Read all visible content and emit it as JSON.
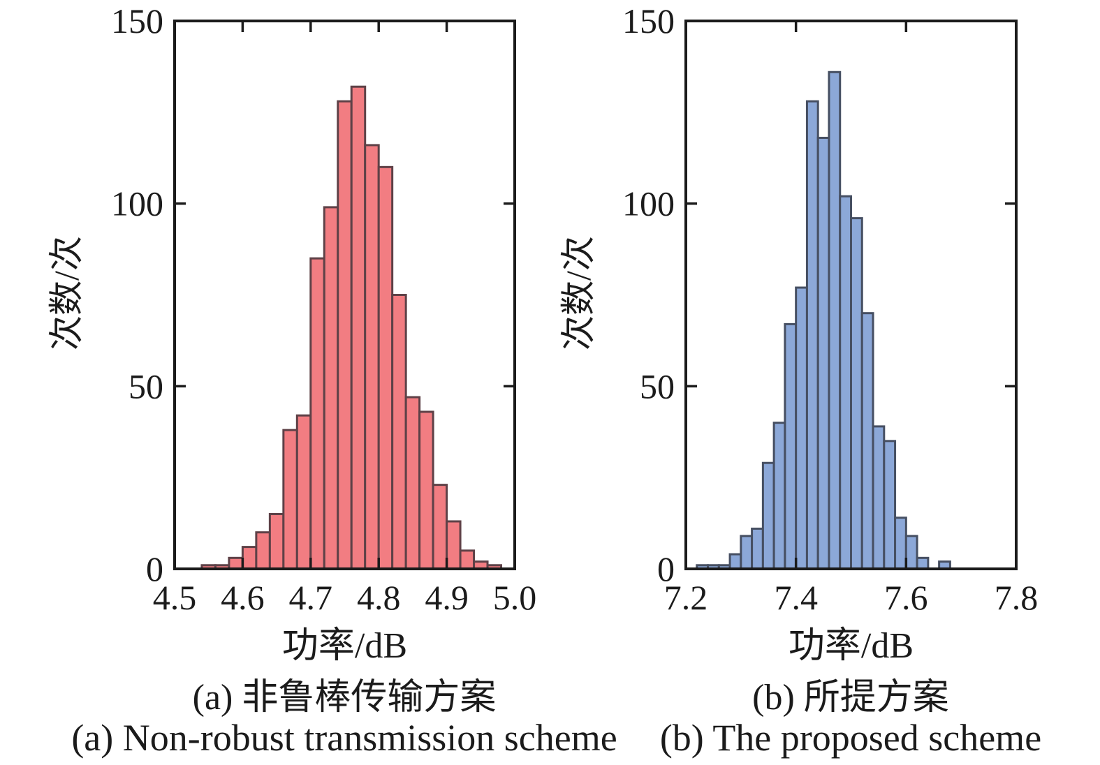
{
  "chart_data": [
    {
      "panel": "a",
      "type": "bar",
      "subtype": "histogram",
      "caption_zh": "(a) 非鲁棒传输方案",
      "caption_en": "(a) Non-robust transmission scheme",
      "xlabel": "功率/dB",
      "ylabel": "次数/次",
      "xlim": [
        4.5,
        5.0
      ],
      "ylim": [
        0,
        150
      ],
      "grid": false,
      "legend": "none",
      "bin_start": 4.54,
      "bin_width": 0.02,
      "values": [
        1,
        1,
        3,
        6,
        10,
        15,
        38,
        42,
        85,
        99,
        128,
        132,
        116,
        110,
        75,
        47,
        43,
        23,
        13,
        5,
        2,
        1
      ],
      "x_ticks": [
        {
          "value": 4.5,
          "label": "4.5"
        },
        {
          "value": 4.6,
          "label": "4.6"
        },
        {
          "value": 4.7,
          "label": "4.7"
        },
        {
          "value": 4.8,
          "label": "4.8"
        },
        {
          "value": 4.9,
          "label": "4.9"
        },
        {
          "value": 5.0,
          "label": "5.0"
        }
      ],
      "y_ticks": [
        {
          "value": 0,
          "label": "0"
        },
        {
          "value": 50,
          "label": "50"
        },
        {
          "value": 100,
          "label": "100"
        },
        {
          "value": 150,
          "label": "150"
        }
      ],
      "x_tick_marks": [
        4.6,
        4.7,
        4.8,
        4.9
      ],
      "y_tick_marks": [
        50,
        100
      ],
      "bar_color": "#f27d82",
      "bar_edge_color": "#5e4147",
      "axis_color": "#1b1b1b"
    },
    {
      "panel": "b",
      "type": "bar",
      "subtype": "histogram",
      "caption_zh": "(b) 所提方案",
      "caption_en": "(b) The proposed scheme",
      "xlabel": "功率/dB",
      "ylabel": "次数/次",
      "xlim": [
        7.2,
        7.8
      ],
      "ylim": [
        0,
        150
      ],
      "grid": false,
      "legend": "none",
      "bin_start": 7.22,
      "bin_width": 0.02,
      "values": [
        1,
        1,
        1,
        4,
        9,
        11,
        29,
        40,
        67,
        77,
        128,
        118,
        136,
        102,
        96,
        70,
        39,
        35,
        14,
        9,
        3,
        0,
        2
      ],
      "x_ticks": [
        {
          "value": 7.2,
          "label": "7.2"
        },
        {
          "value": 7.4,
          "label": "7.4"
        },
        {
          "value": 7.6,
          "label": "7.6"
        },
        {
          "value": 7.8,
          "label": "7.8"
        }
      ],
      "y_ticks": [
        {
          "value": 0,
          "label": "0"
        },
        {
          "value": 50,
          "label": "50"
        },
        {
          "value": 100,
          "label": "100"
        },
        {
          "value": 150,
          "label": "150"
        }
      ],
      "x_tick_marks": [
        7.4,
        7.6
      ],
      "y_tick_marks": [
        50,
        100
      ],
      "bar_color": "#8ca8d8",
      "bar_edge_color": "#464f62",
      "axis_color": "#1b1b1b"
    }
  ]
}
